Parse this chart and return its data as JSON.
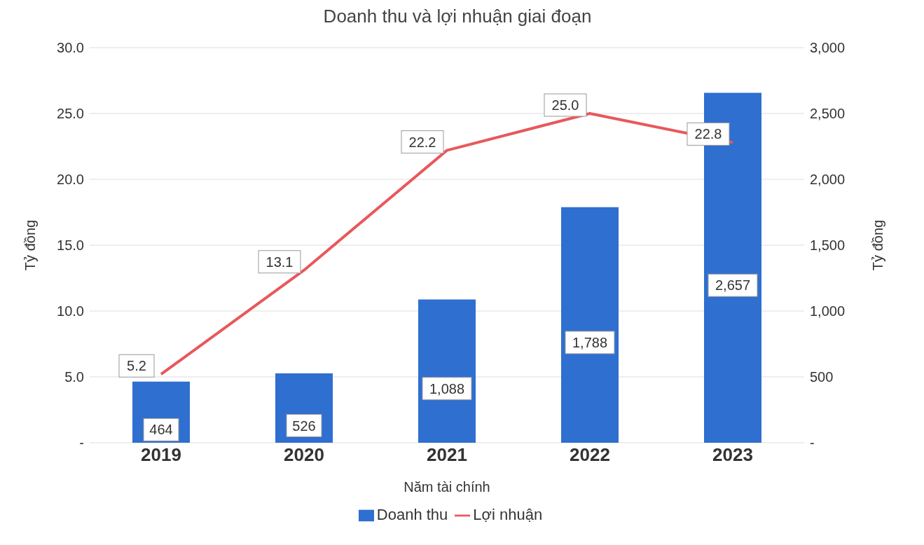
{
  "chart_data": {
    "type": "bar",
    "title": "Doanh thu và lợi nhuận giai đoạn",
    "xlabel": "Năm tài chính",
    "ylabel": "Tỷ đồng",
    "y2label": "Tỷ đồng",
    "categories": [
      "2019",
      "2020",
      "2021",
      "2022",
      "2023"
    ],
    "series": [
      {
        "name": "Doanh thu",
        "axis": "y2",
        "color": "#2e6fd0",
        "values": [
          464,
          526,
          1088,
          1788,
          2657
        ],
        "value_labels": [
          "464",
          "526",
          "1,088",
          "1,788",
          "2,657"
        ]
      },
      {
        "name": "Lợi nhuận",
        "type": "line",
        "axis": "y",
        "color": "#e8585c",
        "marker": "none",
        "values": [
          5.2,
          13.1,
          22.2,
          25.0,
          22.8
        ],
        "value_labels": [
          "5.2",
          "13.1",
          "22.2",
          "25.0",
          "22.8"
        ]
      }
    ],
    "ylim": [
      0,
      30
    ],
    "yticks": [
      {
        "value": 0,
        "label": "-"
      },
      {
        "value": 5,
        "label": "5.0"
      },
      {
        "value": 10,
        "label": "10.0"
      },
      {
        "value": 15,
        "label": "15.0"
      },
      {
        "value": 20,
        "label": "20.0"
      },
      {
        "value": 25,
        "label": "25.0"
      },
      {
        "value": 30,
        "label": "30.0"
      }
    ],
    "y2lim": [
      0,
      3000
    ],
    "y2ticks": [
      {
        "value": 0,
        "label": "-"
      },
      500,
      {
        "value": 1000,
        "label": "1,000"
      },
      {
        "value": 1500,
        "label": "1,500"
      },
      {
        "value": 2000,
        "label": "2,000"
      },
      {
        "value": 2500,
        "label": "2,500"
      },
      {
        "value": 3000,
        "label": "3,000"
      }
    ],
    "grid": "y",
    "legend": "bottom"
  }
}
